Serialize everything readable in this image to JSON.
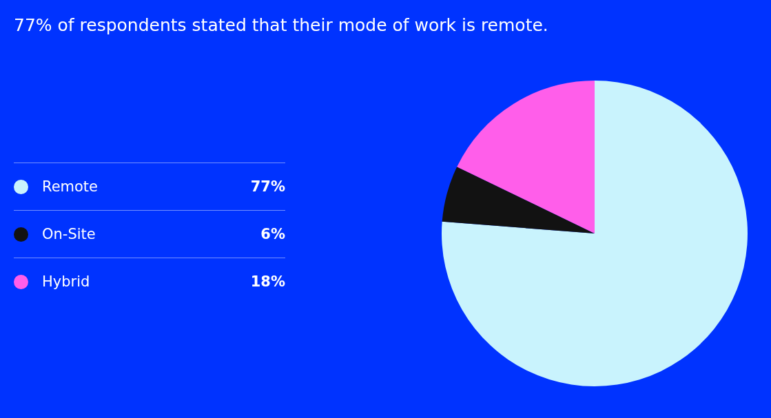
{
  "chart_data": {
    "type": "pie",
    "title": "77% of respondents stated that their mode of work is remote.",
    "categories": [
      "Remote",
      "On-Site",
      "Hybrid"
    ],
    "values": [
      77,
      6,
      18
    ],
    "colors": [
      "#c9f3fd",
      "#121212",
      "#ff5eea"
    ],
    "value_labels": [
      "77%",
      "6%",
      "18%"
    ],
    "legend": "left"
  }
}
